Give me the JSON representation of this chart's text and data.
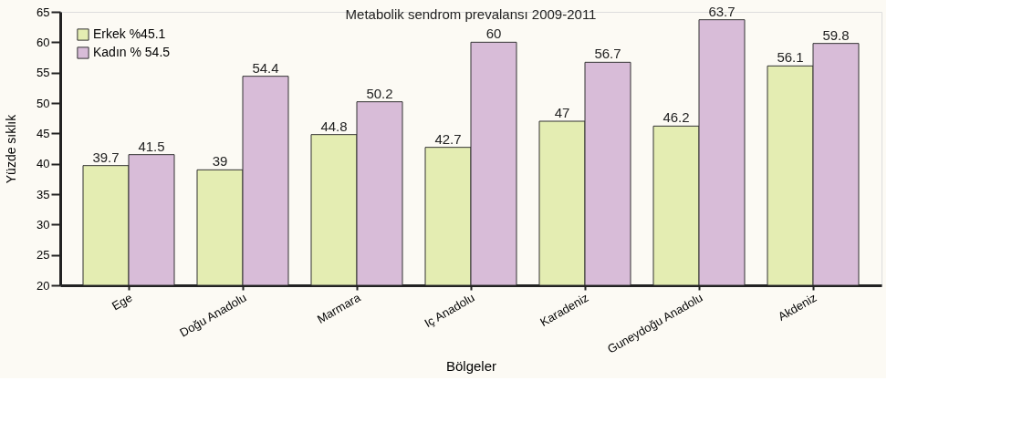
{
  "chart_data": {
    "type": "bar",
    "title": "Metabolik sendrom prevalansı 2009-2011",
    "xlabel": "Bölgeler",
    "ylabel": "Yüzde sıklık",
    "categories": [
      "Ege",
      "Doğu Anadolu",
      "Marmara",
      "Iç Anadolu",
      "Karadeniz",
      "Guneydoğu Anadolu",
      "Akdeniz"
    ],
    "series": [
      {
        "name": "Erkek %45.1",
        "color": "#e4edb2",
        "values": [
          39.7,
          39,
          44.8,
          42.7,
          47,
          46.2,
          56.1
        ]
      },
      {
        "name": "Kadın % 54.5",
        "color": "#d8bcd8",
        "values": [
          41.5,
          54.4,
          50.2,
          60,
          56.7,
          63.7,
          59.8
        ]
      }
    ],
    "ylim": [
      20,
      65
    ],
    "yticks": [
      20,
      25,
      30,
      35,
      40,
      45,
      50,
      55,
      60,
      65
    ],
    "data_labels": true,
    "grid": false,
    "legend": "top left"
  }
}
